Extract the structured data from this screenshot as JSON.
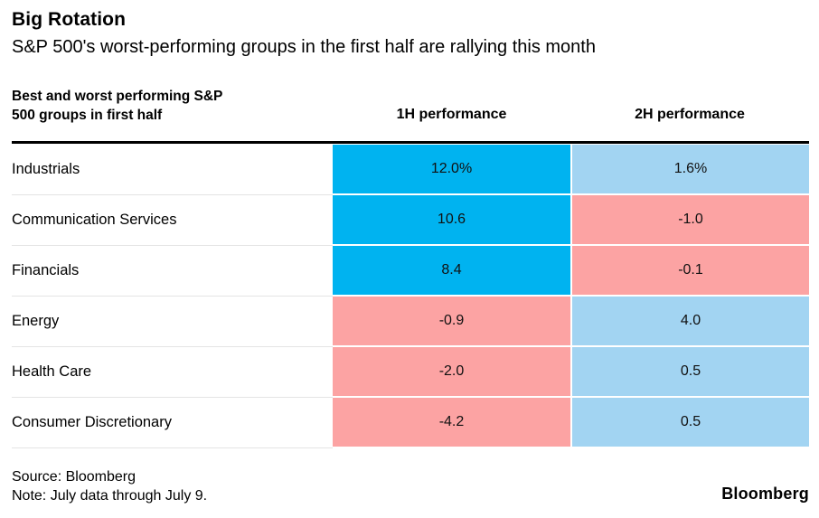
{
  "title": "Big Rotation",
  "subtitle": "S&P 500's worst-performing groups in the first half are rallying this month",
  "table": {
    "row_header_line1": "Best and worst performing S&P",
    "row_header_line2": "500 groups in first half",
    "columns": [
      "1H performance",
      "2H performance"
    ],
    "rows": [
      {
        "label": "Industrials",
        "cells": [
          {
            "text": "12.0%",
            "bg": "#00B3F0"
          },
          {
            "text": "1.6%",
            "bg": "#A2D4F2"
          }
        ]
      },
      {
        "label": "Communication Services",
        "cells": [
          {
            "text": "10.6",
            "bg": "#00B3F0"
          },
          {
            "text": "-1.0",
            "bg": "#FCA3A3"
          }
        ]
      },
      {
        "label": "Financials",
        "cells": [
          {
            "text": "8.4",
            "bg": "#00B3F0"
          },
          {
            "text": "-0.1",
            "bg": "#FCA3A3"
          }
        ]
      },
      {
        "label": "Energy",
        "cells": [
          {
            "text": "-0.9",
            "bg": "#FCA3A3"
          },
          {
            "text": "4.0",
            "bg": "#A2D4F2"
          }
        ]
      },
      {
        "label": "Health Care",
        "cells": [
          {
            "text": "-2.0",
            "bg": "#FCA3A3"
          },
          {
            "text": "0.5",
            "bg": "#A2D4F2"
          }
        ]
      },
      {
        "label": "Consumer Discretionary",
        "cells": [
          {
            "text": "-4.2",
            "bg": "#FCA3A3"
          },
          {
            "text": "0.5",
            "bg": "#A2D4F2"
          }
        ]
      }
    ]
  },
  "footer": {
    "source": "Source: Bloomberg",
    "note": "Note: July data through July 9.",
    "logo": "Bloomberg"
  },
  "colors": {
    "strong_positive_blue": "#00B3F0",
    "mild_positive_light_blue": "#A2D4F2",
    "negative_pink": "#FCA3A3",
    "rule_black": "#000000",
    "row_divider_gray": "#e4e4e4"
  },
  "chart_data": {
    "type": "table",
    "title": "Big Rotation",
    "subtitle": "S&P 500's worst-performing groups in the first half are rallying this month",
    "row_header": "Best and worst performing S&P 500 groups in first half",
    "columns": [
      "1H performance",
      "2H performance"
    ],
    "categories": [
      "Industrials",
      "Communication Services",
      "Financials",
      "Energy",
      "Health Care",
      "Consumer Discretionary"
    ],
    "series": [
      {
        "name": "1H performance",
        "values": [
          12.0,
          10.6,
          8.4,
          -0.9,
          -2.0,
          -4.2
        ]
      },
      {
        "name": "2H performance",
        "values": [
          1.6,
          -1.0,
          -0.1,
          4.0,
          0.5,
          0.5
        ]
      }
    ],
    "units": "percent",
    "cell_color_rule": "bright blue = large positive, light blue = small positive, pink = negative",
    "source": "Source: Bloomberg",
    "note": "Note: July data through July 9."
  }
}
